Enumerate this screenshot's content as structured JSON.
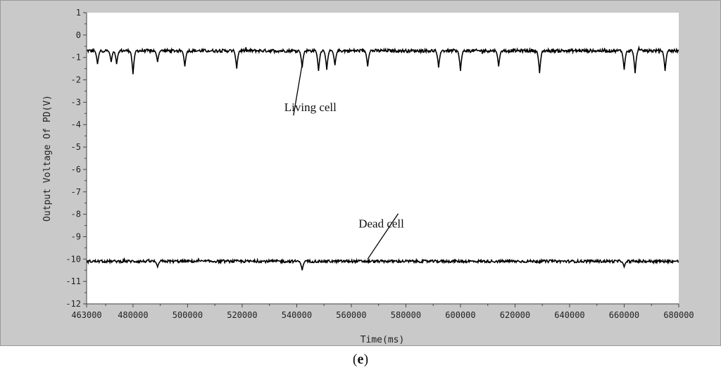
{
  "chart_data": {
    "type": "line",
    "title": "",
    "xlabel": "Time(ms)",
    "ylabel": "Output Voltage Of PD(V)",
    "xlim": [
      463000,
      680000
    ],
    "ylim": [
      -12,
      1
    ],
    "x_ticks": [
      463000,
      480000,
      500000,
      520000,
      540000,
      560000,
      580000,
      600000,
      620000,
      640000,
      660000,
      680000
    ],
    "y_ticks": [
      1,
      0,
      -1,
      -2,
      -3,
      -4,
      -5,
      -6,
      -7,
      -8,
      -9,
      -10,
      -11,
      -12
    ],
    "grid": false,
    "legend": "none",
    "series": [
      {
        "baseline": -0.7,
        "noise": 0.07,
        "color": "#000000",
        "dips": [
          {
            "x": 467000,
            "depth": -1.3
          },
          {
            "x": 472000,
            "depth": -1.2
          },
          {
            "x": 474000,
            "depth": -1.3
          },
          {
            "x": 480000,
            "depth": -1.75
          },
          {
            "x": 489000,
            "depth": -1.2
          },
          {
            "x": 499000,
            "depth": -1.4
          },
          {
            "x": 518000,
            "depth": -1.5
          },
          {
            "x": 542000,
            "depth": -1.45
          },
          {
            "x": 548000,
            "depth": -1.6
          },
          {
            "x": 551000,
            "depth": -1.55
          },
          {
            "x": 554000,
            "depth": -1.35
          },
          {
            "x": 566000,
            "depth": -1.4
          },
          {
            "x": 592000,
            "depth": -1.45
          },
          {
            "x": 600000,
            "depth": -1.6
          },
          {
            "x": 614000,
            "depth": -1.4
          },
          {
            "x": 629000,
            "depth": -1.7
          },
          {
            "x": 660000,
            "depth": -1.55
          },
          {
            "x": 664000,
            "depth": -1.7
          },
          {
            "x": 675000,
            "depth": -1.6
          }
        ]
      },
      {
        "baseline": -10.1,
        "noise": 0.06,
        "color": "#000000",
        "dips": [
          {
            "x": 542000,
            "depth": -10.5
          },
          {
            "x": 489000,
            "depth": -10.35
          },
          {
            "x": 660000,
            "depth": -10.35
          }
        ]
      }
    ],
    "annotations": [
      {
        "text": "Living cell",
        "x": 545000,
        "y": -3.4,
        "point_x": 542000,
        "point_y": -1.3
      },
      {
        "text": "Dead cell",
        "x": 571000,
        "y": -8.6,
        "point_x": 566000,
        "point_y": -10.0
      }
    ]
  },
  "caption": {
    "open": "(",
    "letter": "e",
    "close": ")"
  }
}
